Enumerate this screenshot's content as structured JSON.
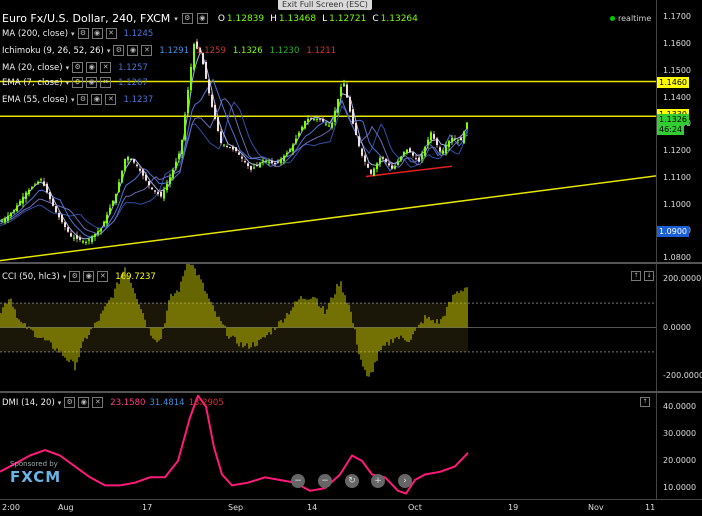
{
  "window": {
    "exit_fullscreen": "Exit Full Screen (ESC)"
  },
  "header": {
    "symbol": "Euro Fx/U.S. Dollar, 240, FXCM",
    "ohlc": [
      {
        "label": "O",
        "value": "1.12839"
      },
      {
        "label": "H",
        "value": "1.13468"
      },
      {
        "label": "L",
        "value": "1.12721"
      },
      {
        "label": "C",
        "value": "1.13264"
      }
    ],
    "realtime": "realtime"
  },
  "indicators": [
    {
      "name": "MA (200, close)",
      "values": [
        {
          "v": "1.1245",
          "color": "#4a74d9"
        }
      ]
    },
    {
      "name": "Ichimoku (9, 26, 52, 26)",
      "values": [
        {
          "v": "1.1291",
          "color": "#3f8fe0"
        },
        {
          "v": "1.1259",
          "color": "#c23a3a"
        },
        {
          "v": "1.1326",
          "color": "#7CFC00"
        },
        {
          "v": "1.1230",
          "color": "#28b028"
        },
        {
          "v": "1.1211",
          "color": "#d93030"
        }
      ]
    },
    {
      "name": "MA (20, close)",
      "values": [
        {
          "v": "1.1257",
          "color": "#4a74d9"
        }
      ]
    },
    {
      "name": "EMA (7, close)",
      "values": [
        {
          "v": "1.1267",
          "color": "#4a74d9"
        }
      ]
    },
    {
      "name": "EMA (55, close)",
      "values": [
        {
          "v": "1.1237",
          "color": "#4a74d9"
        }
      ]
    }
  ],
  "price_axis": {
    "ticks": [
      "1.1700",
      "1.1600",
      "1.1500",
      "1.1400",
      "1.1300",
      "1.1200",
      "1.1100",
      "1.1000",
      "1.0900",
      "1.0800"
    ],
    "tags": [
      {
        "text": "1.1460",
        "bg": "#ffff00",
        "fg": "#000"
      },
      {
        "text": "1.1330",
        "bg": "#ffff00",
        "fg": "#000"
      },
      {
        "text": "1.1326",
        "bg": "#33cc33",
        "fg": "#000"
      },
      {
        "text": "46:24",
        "bg": "#33cc33",
        "fg": "#000"
      },
      {
        "text": "1.0900",
        "bg": "#1a5fd6",
        "fg": "#fff"
      }
    ]
  },
  "cci": {
    "name": "CCI (50, hlc3)",
    "value": "169.7237",
    "value_color": "#ffff00",
    "ticks": [
      "200.0000",
      "0.0000",
      "-200.0000"
    ]
  },
  "dmi": {
    "name": "DMI (14, 20)",
    "values": [
      {
        "v": "23.1580",
        "color": "#ff3a8a"
      },
      {
        "v": "31.4814",
        "color": "#3f8fe0"
      },
      {
        "v": "13.2905",
        "color": "#d93030"
      }
    ],
    "ticks": [
      "40.0000",
      "30.0000",
      "20.0000",
      "10.0000"
    ]
  },
  "xaxis": [
    "2:00",
    "Aug",
    "17",
    "Sep",
    "14",
    "Oct",
    "19",
    "Nov",
    "11"
  ],
  "branding": {
    "sponsored": "Sponsored by",
    "brand": "FXCM"
  },
  "nav": [
    "−",
    "−",
    "↻",
    "+",
    "›"
  ],
  "colors": {
    "up": "#7CFC00",
    "down": "#e0a0a0",
    "level": "#e6e600",
    "cci": "#cccc00",
    "dmi": "#ff1a7a"
  }
}
